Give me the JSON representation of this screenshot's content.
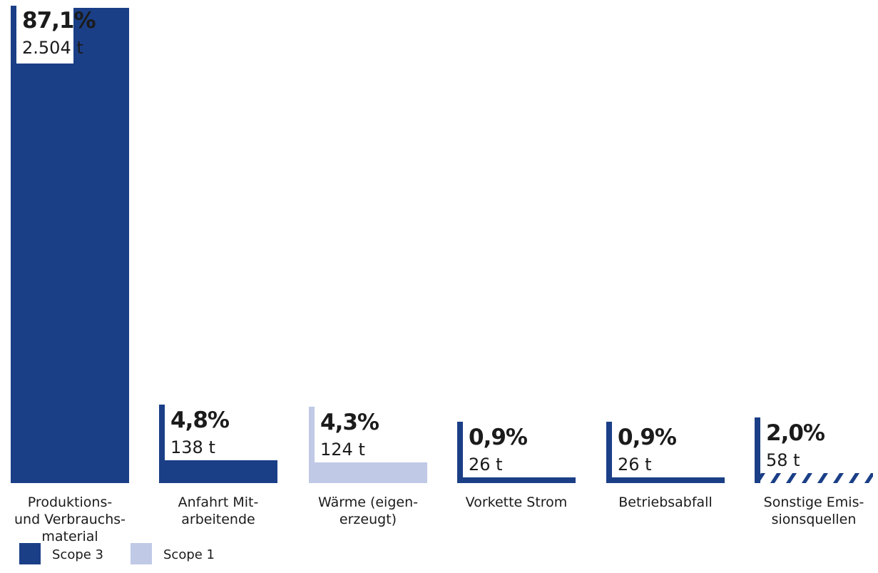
{
  "chart_data": {
    "type": "bar",
    "categories": [
      [
        "Produktions-",
        "und Verbrauchs-",
        "material"
      ],
      [
        "Anfahrt Mit-",
        "arbeitende"
      ],
      [
        "Wärme (eigen-",
        "erzeugt)"
      ],
      [
        "Vorkette Strom"
      ],
      [
        "Betriebsabfall"
      ],
      [
        "Sonstige Emis-",
        "sionsquellen"
      ]
    ],
    "percent_labels": [
      "87,1%",
      "4,8%",
      "4,3%",
      "0,9%",
      "0,9%",
      "2,0%"
    ],
    "tonnes_labels": [
      "2.504 t",
      "138 t",
      "124 t",
      "26 t",
      "26 t",
      "58 t"
    ],
    "values": [
      2504,
      138,
      124,
      26,
      26,
      58
    ],
    "unit": "t",
    "scope": [
      "Scope 3",
      "Scope 3",
      "Scope 1",
      "Scope 3",
      "Scope 3",
      "mixed"
    ],
    "legend": [
      {
        "label": "Scope 3",
        "color": "#1b3f87"
      },
      {
        "label": "Scope 1",
        "color": "#c0c9e6"
      }
    ],
    "colors": {
      "scope3": "#1b3f87",
      "scope1": "#c0c9e6",
      "text": "#1b1b1b"
    },
    "legend_position": "bottom-left",
    "grid": false
  }
}
